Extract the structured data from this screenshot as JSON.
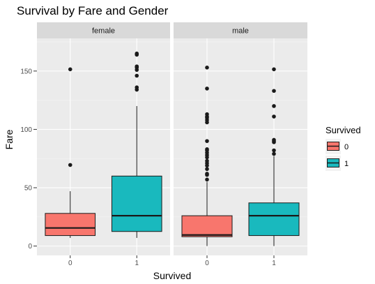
{
  "chart_data": {
    "type": "boxplot",
    "title": "Survival by Fare and Gender",
    "xlabel": "Survived",
    "ylabel": "Fare",
    "ylim": [
      -8,
      178
    ],
    "yticks": [
      0,
      50,
      100,
      150
    ],
    "categories": [
      "0",
      "1"
    ],
    "facets": [
      {
        "name": "female",
        "boxes": [
          {
            "x": "0",
            "whisker_low": 7,
            "q1": 9,
            "median": 15.5,
            "q3": 28,
            "whisker_high": 47,
            "outliers": [
              69.5,
              151.5
            ]
          },
          {
            "x": "1",
            "whisker_low": 7,
            "q1": 12.5,
            "median": 26,
            "q3": 60,
            "whisker_high": 120,
            "outliers": [
              134,
              136,
              146,
              151,
              153,
              154,
              164,
              165
            ]
          }
        ]
      },
      {
        "name": "male",
        "boxes": [
          {
            "x": "0",
            "whisker_low": 0,
            "q1": 8,
            "median": 9.5,
            "q3": 26,
            "whisker_high": 55,
            "outliers": [
              57,
              61,
              62,
              66,
              69,
              71,
              73,
              76,
              78,
              80,
              82,
              83,
              90,
              106,
              108,
              110,
              111,
              113,
              135,
              153
            ]
          },
          {
            "x": "1",
            "whisker_low": 0,
            "q1": 9,
            "median": 26,
            "q3": 37,
            "whisker_high": 77,
            "outliers": [
              79,
              82,
              89,
              90,
              91,
              111,
              120,
              133,
              151.5
            ]
          }
        ]
      }
    ],
    "legend": {
      "title": "Survived",
      "position": "right",
      "items": [
        {
          "label": "0",
          "color": "#F8766D"
        },
        {
          "label": "1",
          "color": "#00BFC4"
        }
      ]
    },
    "colors": {
      "panel_bg": "#EBEBEB",
      "strip_bg": "#D9D9D9",
      "grid_major": "#FFFFFF",
      "box_fill_0": "#F8766D",
      "box_fill_1": "#19B9BE",
      "line": "#1a1a1a"
    },
    "grid": true
  }
}
